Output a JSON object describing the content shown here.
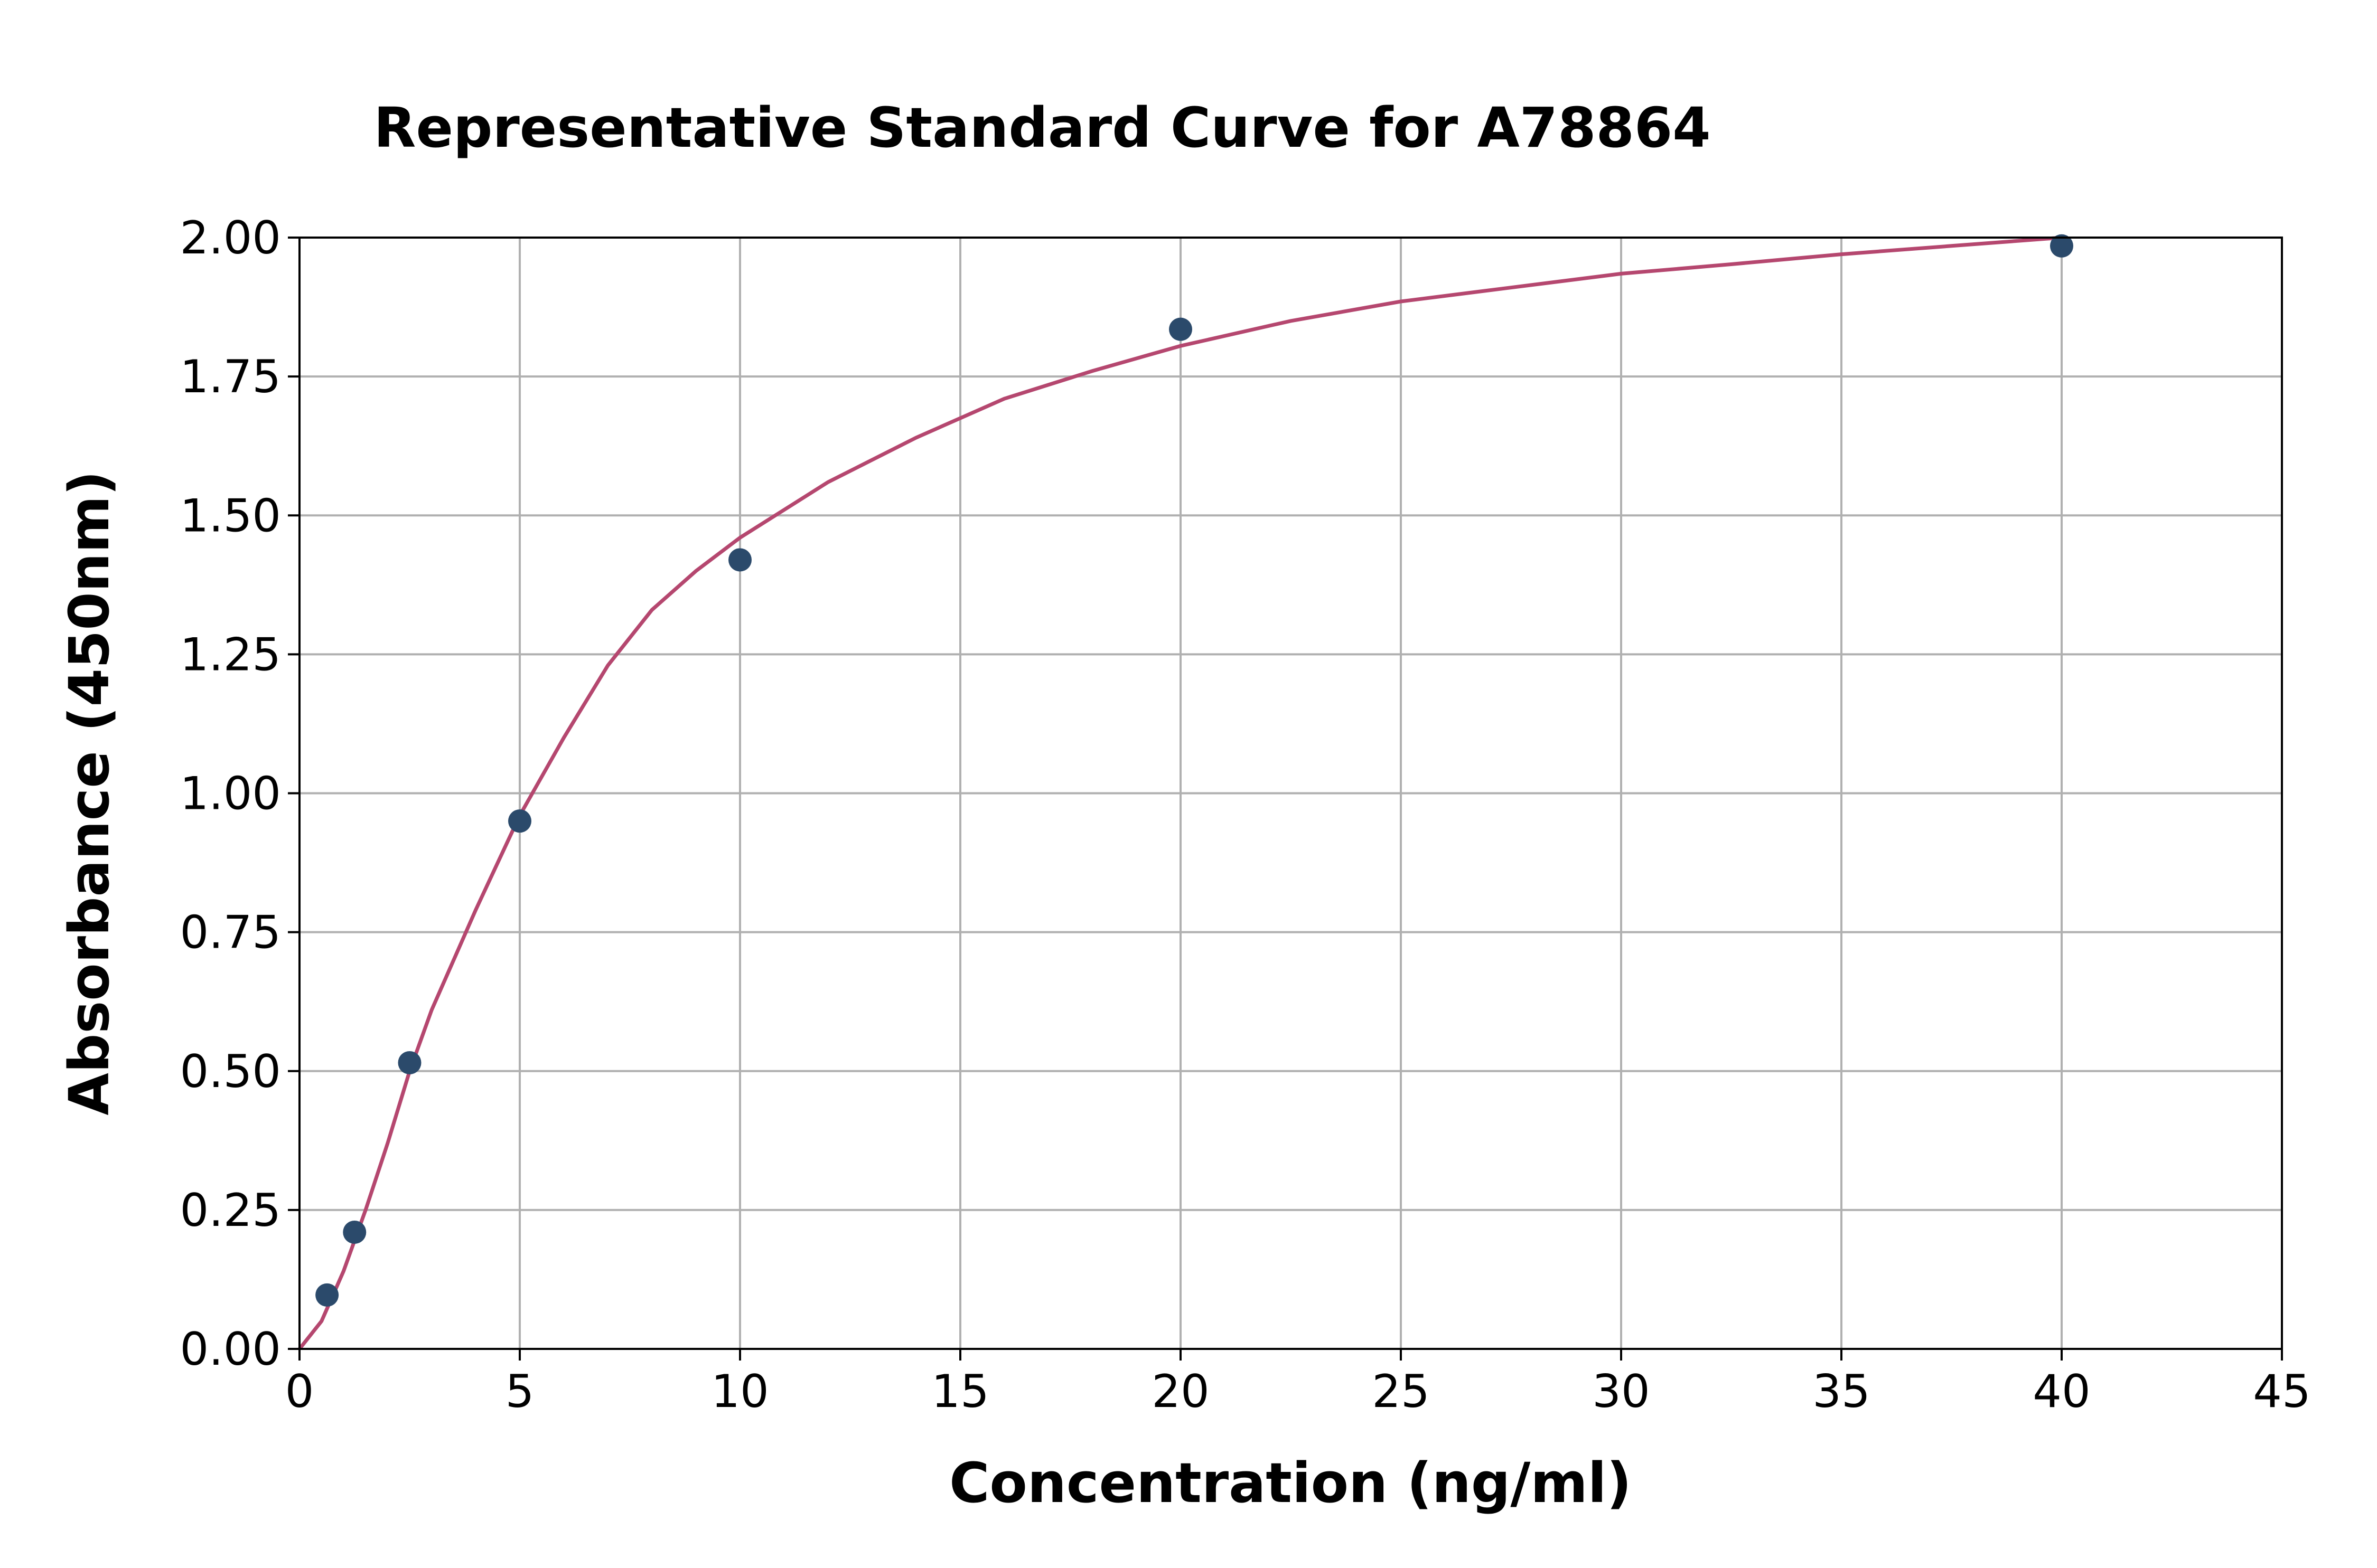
{
  "chart_data": {
    "type": "scatter",
    "title": "Representative Standard Curve for A78864",
    "xlabel": "Concentration (ng/ml)",
    "ylabel": "Absorbance (450nm)",
    "xlim": [
      0,
      45
    ],
    "ylim": [
      0,
      2.0
    ],
    "x_ticks": [
      "0",
      "5",
      "10",
      "15",
      "20",
      "25",
      "30",
      "35",
      "40",
      "45"
    ],
    "y_ticks": [
      "0.00",
      "0.25",
      "0.50",
      "0.75",
      "1.00",
      "1.25",
      "1.50",
      "1.75",
      "2.00"
    ],
    "grid": true,
    "series": [
      {
        "kind": "points",
        "x": [
          0.625,
          1.25,
          2.5,
          5,
          10,
          20,
          40
        ],
        "y": [
          0.097,
          0.21,
          0.515,
          0.95,
          1.42,
          1.835,
          1.985
        ],
        "color": "#2b4a6b"
      },
      {
        "kind": "fitted-curve",
        "x": [
          0,
          0.5,
          1,
          1.5,
          2,
          2.5,
          3,
          4,
          5,
          6,
          7,
          8,
          9,
          10,
          12,
          14,
          16,
          18,
          20,
          22.5,
          25,
          27.5,
          30,
          32.5,
          35,
          37.5,
          40
        ],
        "y": [
          0.0,
          0.05,
          0.14,
          0.25,
          0.37,
          0.5,
          0.61,
          0.79,
          0.96,
          1.1,
          1.23,
          1.33,
          1.4,
          1.46,
          1.56,
          1.64,
          1.71,
          1.76,
          1.805,
          1.85,
          1.885,
          1.91,
          1.935,
          1.952,
          1.97,
          1.985,
          2.0
        ],
        "color": "#b5476f"
      }
    ]
  }
}
